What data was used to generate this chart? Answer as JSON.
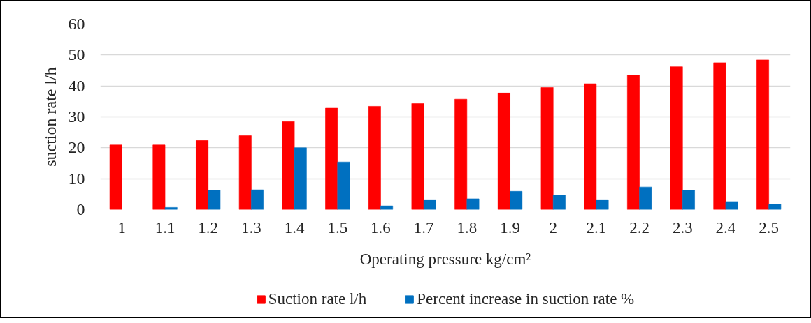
{
  "chart_data": {
    "type": "bar",
    "ylabel": "suction rate l/h",
    "xlabel": "Operating pressure kg/cm²",
    "categories": [
      "1",
      "1.1",
      "1.2",
      "1.3",
      "1.4",
      "1.5",
      "1.6",
      "1.7",
      "1.8",
      "1.9",
      "2",
      "2.1",
      "2.2",
      "2.3",
      "2.4",
      "2.5"
    ],
    "series": [
      {
        "name": "Suction rate l/h",
        "color": "#ff0000",
        "values": [
          20.9,
          20.9,
          22.4,
          23.9,
          28.5,
          32.8,
          33.4,
          34.3,
          35.7,
          37.7,
          39.5,
          40.7,
          43.4,
          46.2,
          47.5,
          48.4
        ]
      },
      {
        "name": "Percent increase in suction rate %",
        "color": "#0070c0",
        "values": [
          null,
          0.7,
          6.2,
          6.4,
          20.0,
          15.4,
          1.2,
          3.2,
          3.5,
          5.9,
          4.7,
          3.2,
          7.3,
          6.2,
          2.6,
          1.8
        ]
      }
    ],
    "ylim": [
      0,
      60
    ],
    "yticks": [
      0,
      10,
      20,
      30,
      40,
      50,
      60
    ],
    "grid": "y",
    "legend": "bottom"
  }
}
